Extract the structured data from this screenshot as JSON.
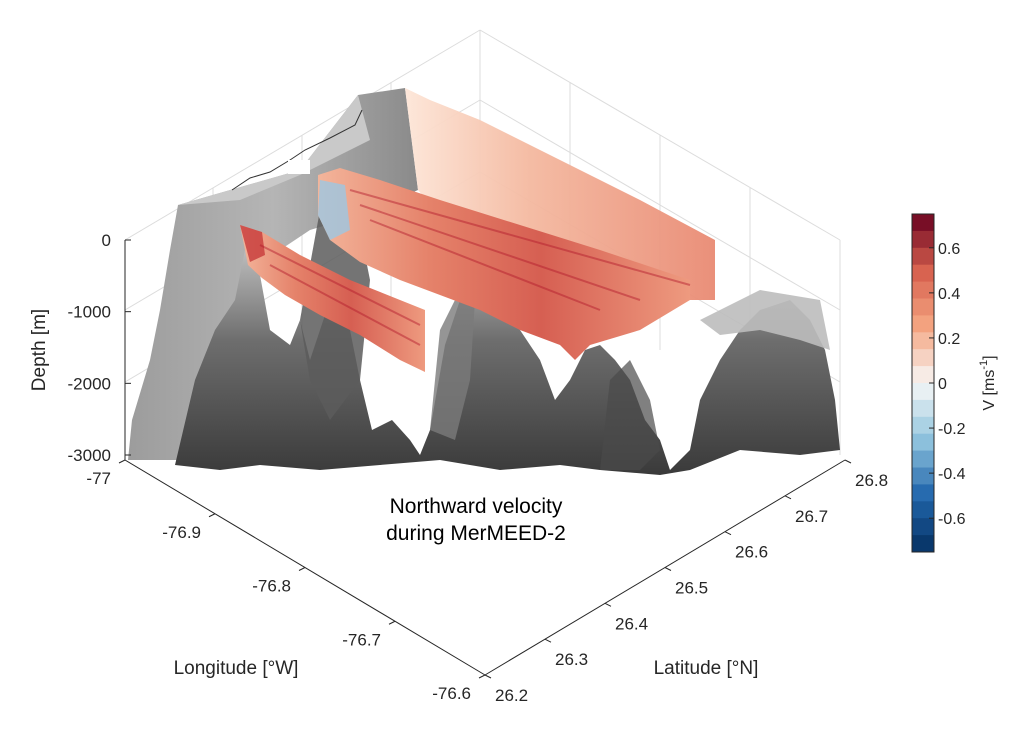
{
  "chart_data": {
    "type": "3d-surface",
    "annotation": [
      "Northward velocity",
      "during MerMEED-2"
    ],
    "axes": {
      "depth": {
        "label": "Depth [m]",
        "ticks": [
          "0",
          "-1000",
          "-2000",
          "-3000"
        ],
        "range": [
          -3000,
          0
        ]
      },
      "longitude": {
        "label": "Longitude [°W]",
        "ticks": [
          "-77",
          "-76.9",
          "-76.8",
          "-76.7",
          "-76.6"
        ],
        "range": [
          -77,
          -76.6
        ]
      },
      "latitude": {
        "label": "Latitude [°N]",
        "ticks": [
          "26.2",
          "26.3",
          "26.4",
          "26.5",
          "26.6",
          "26.7",
          "26.8"
        ],
        "range": [
          26.2,
          26.8
        ]
      }
    },
    "colorbar": {
      "label_main": "V [ms",
      "label_sup": "-1",
      "label_close": "]",
      "range": [
        -0.75,
        0.75
      ],
      "levels": 20,
      "ticks": [
        "0.6",
        "0.4",
        "0.2",
        "0",
        "-0.2",
        "-0.4",
        "-0.6"
      ],
      "tick_values": [
        0.6,
        0.4,
        0.2,
        0,
        -0.2,
        -0.4,
        -0.6
      ],
      "colormap": "diverging-red-blue"
    },
    "grid": true
  }
}
